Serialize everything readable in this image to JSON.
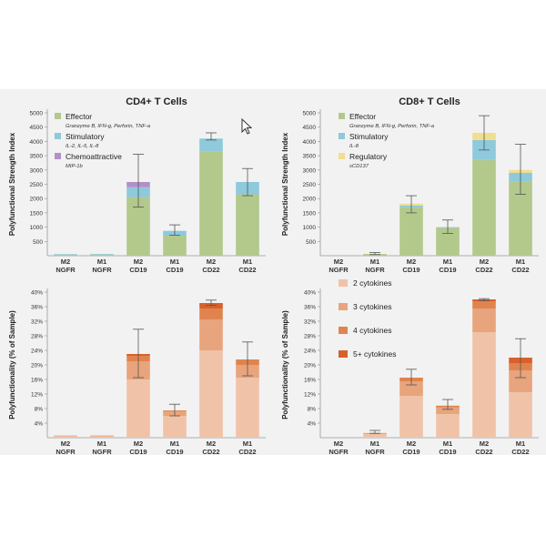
{
  "chart_data": [
    {
      "type": "bar",
      "stacked": true,
      "title": "CD4+ T Cells",
      "ylabel": "Polyfunctional Strength Index",
      "ylim": [
        0,
        5000
      ],
      "yticks": [
        500,
        1000,
        1500,
        2000,
        2500,
        3000,
        3500,
        4000,
        4500,
        5000
      ],
      "categories": [
        [
          "M2",
          "NGFR"
        ],
        [
          "M1",
          "NGFR"
        ],
        [
          "M2",
          "CD19"
        ],
        [
          "M1",
          "CD19"
        ],
        [
          "M2",
          "CD22"
        ],
        [
          "M1",
          "CD22"
        ]
      ],
      "series": [
        {
          "name": "Effector",
          "sublabel": "Granzyme B, IFN-g, Perforin, TNF-a",
          "color": "#b2c98b",
          "values": [
            40,
            40,
            2050,
            700,
            3650,
            2150
          ]
        },
        {
          "name": "Stimulatory",
          "sublabel": "IL-2, IL-5, IL-8",
          "color": "#8ec9dc",
          "values": [
            15,
            20,
            350,
            170,
            450,
            430
          ]
        },
        {
          "name": "Chemoattractive",
          "sublabel": "MIP-1b",
          "color": "#b38fc8",
          "values": [
            0,
            0,
            180,
            0,
            0,
            0
          ]
        }
      ],
      "errors": [
        null,
        null,
        [
          1700,
          3550
        ],
        [
          720,
          1080
        ],
        [
          4050,
          4300
        ],
        [
          2100,
          3050
        ]
      ],
      "legend_position": "top-left"
    },
    {
      "type": "bar",
      "stacked": true,
      "title": "CD8+ T Cells",
      "ylabel": "Polyfunctional Strength Index",
      "ylim": [
        0,
        5000
      ],
      "yticks": [
        500,
        1000,
        1500,
        2000,
        2500,
        3000,
        3500,
        4000,
        4500,
        5000
      ],
      "categories": [
        [
          "M2",
          "NGFR"
        ],
        [
          "M1",
          "NGFR"
        ],
        [
          "M2",
          "CD19"
        ],
        [
          "M1",
          "CD19"
        ],
        [
          "M2",
          "CD22"
        ],
        [
          "M1",
          "CD22"
        ]
      ],
      "series": [
        {
          "name": "Effector",
          "sublabel": "Granzyme B, IFN-g, Perforin, TNF-a",
          "color": "#b2c98b",
          "values": [
            0,
            60,
            1700,
            980,
            3350,
            2600
          ]
        },
        {
          "name": "Stimulatory",
          "sublabel": "IL-8",
          "color": "#8ec9dc",
          "values": [
            0,
            0,
            60,
            20,
            700,
            300
          ]
        },
        {
          "name": "Regulatory",
          "sublabel": "sCD137",
          "color": "#f2de8e",
          "values": [
            0,
            0,
            60,
            0,
            250,
            100
          ]
        }
      ],
      "errors": [
        null,
        [
          40,
          110
        ],
        [
          1500,
          2100
        ],
        [
          780,
          1250
        ],
        [
          3700,
          4900
        ],
        [
          2150,
          3900
        ]
      ],
      "legend_position": "top-left"
    },
    {
      "type": "bar",
      "stacked": true,
      "ylabel": "Polyfunctionality (% of Sample)",
      "ylim": [
        0,
        40
      ],
      "yticks": [
        4,
        8,
        12,
        16,
        20,
        24,
        28,
        32,
        36,
        40
      ],
      "ytick_suffix": "%",
      "categories": [
        [
          "M2",
          "NGFR"
        ],
        [
          "M1",
          "NGFR"
        ],
        [
          "M2",
          "CD19"
        ],
        [
          "M1",
          "CD19"
        ],
        [
          "M2",
          "CD22"
        ],
        [
          "M1",
          "CD22"
        ]
      ],
      "series": [
        {
          "name": "2 cytokines",
          "color": "#f0c3a8",
          "values": [
            0.4,
            0.5,
            16,
            6,
            24,
            16.5
          ]
        },
        {
          "name": "3 cytokines",
          "color": "#e8a47c",
          "values": [
            0.2,
            0.1,
            5,
            1.2,
            8.5,
            3.5
          ]
        },
        {
          "name": "4 cytokines",
          "color": "#e0844f",
          "values": [
            0,
            0,
            1.5,
            0.3,
            3,
            1.5
          ]
        },
        {
          "name": "5+ cytokines",
          "color": "#d8602a",
          "values": [
            0,
            0,
            0.5,
            0,
            1.5,
            0
          ]
        }
      ],
      "errors": [
        null,
        null,
        [
          16.5,
          29.8
        ],
        [
          6,
          9.2
        ],
        [
          36.4,
          37.8
        ],
        [
          17,
          26.3
        ]
      ],
      "legend_position": "none"
    },
    {
      "type": "bar",
      "stacked": true,
      "ylabel": "Polyfunctionality (% of Sample)",
      "ylim": [
        0,
        40
      ],
      "yticks": [
        4,
        8,
        12,
        16,
        20,
        24,
        28,
        32,
        36,
        40
      ],
      "ytick_suffix": "%",
      "categories": [
        [
          "M2",
          "NGFR"
        ],
        [
          "M1",
          "NGFR"
        ],
        [
          "M2",
          "CD19"
        ],
        [
          "M1",
          "CD19"
        ],
        [
          "M2",
          "CD22"
        ],
        [
          "M1",
          "CD22"
        ]
      ],
      "series": [
        {
          "name": "2 cytokines",
          "color": "#f0c3a8",
          "values": [
            0,
            1,
            11.5,
            6.5,
            29,
            12.5
          ]
        },
        {
          "name": "3 cytokines",
          "color": "#e8a47c",
          "values": [
            0,
            0.3,
            4,
            1.8,
            6.5,
            6
          ]
        },
        {
          "name": "4 cytokines",
          "color": "#e0844f",
          "values": [
            0,
            0,
            1,
            0.5,
            2,
            2
          ]
        },
        {
          "name": "5+ cytokines",
          "color": "#d8602a",
          "values": [
            0,
            0,
            0,
            0,
            0.5,
            1.5
          ]
        }
      ],
      "errors": [
        null,
        [
          1.2,
          2
        ],
        [
          14.5,
          18.8
        ],
        [
          7.8,
          10.5
        ],
        [
          37.6,
          38.2
        ],
        [
          16.5,
          27.2
        ]
      ],
      "legend_position": "top-left"
    }
  ]
}
